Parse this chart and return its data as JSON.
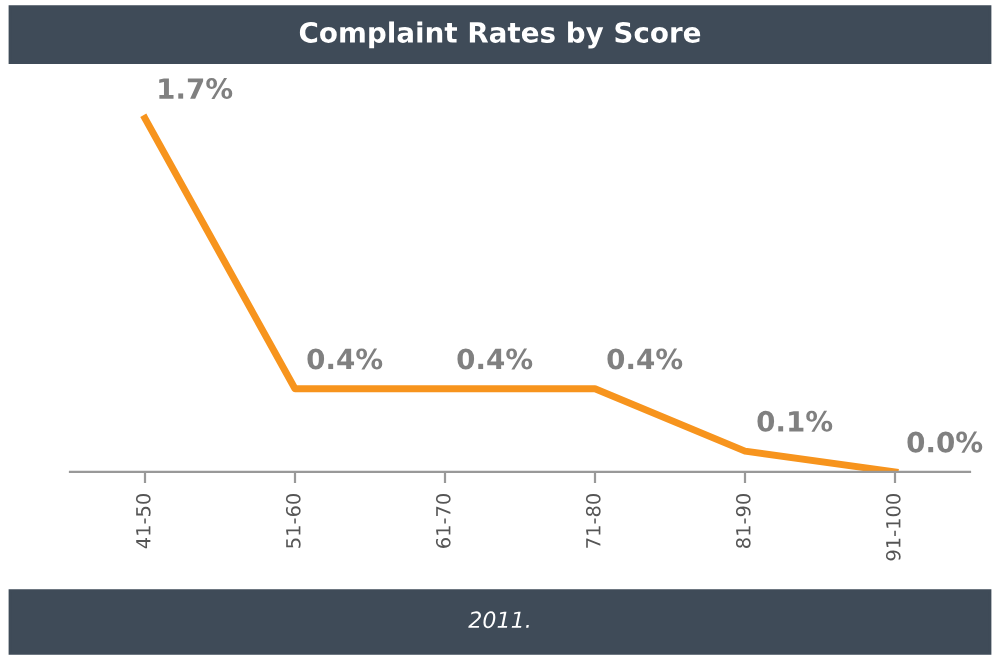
{
  "chart_data": {
    "type": "line",
    "title": "Complaint Rates by Score",
    "categories": [
      "41-50",
      "51-60",
      "61-70",
      "71-80",
      "81-90",
      "91-100"
    ],
    "series": [
      {
        "color": "#f7941d",
        "values": [
          1.7,
          0.4,
          0.4,
          0.4,
          0.1,
          0.0
        ],
        "value_labels": [
          "1.7%",
          "0.4%",
          "0.4%",
          "0.4%",
          "0.1%",
          "0.0%"
        ]
      }
    ],
    "marker": "none",
    "line_style": "solid",
    "grid": false,
    "legend": false,
    "annotations": [
      "2011."
    ]
  }
}
